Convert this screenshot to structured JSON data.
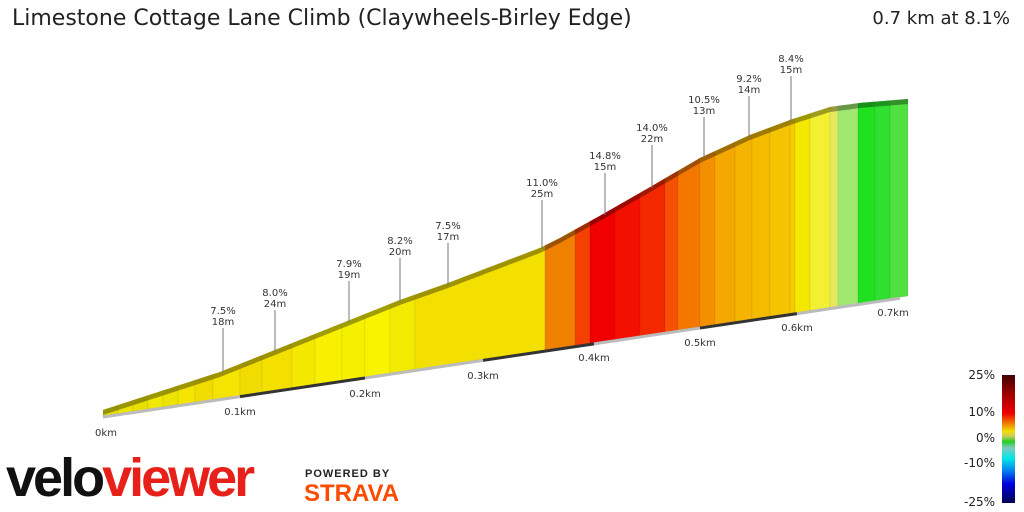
{
  "header": {
    "title": "Limestone Cottage Lane Climb (Claywheels-Birley Edge)",
    "summary": "0.7 km at 8.1%"
  },
  "chart_data": {
    "type": "area",
    "title": "Limestone Cottage Lane Climb (Claywheels-Birley Edge)",
    "x_ticks": [
      "0km",
      "0.1km",
      "0.2km",
      "0.3km",
      "0.4km",
      "0.5km",
      "0.6km",
      "0.7km"
    ],
    "xlim_km": [
      0,
      0.7
    ],
    "segment_labels": [
      {
        "grade": "7.5%",
        "length": "18m"
      },
      {
        "grade": "8.0%",
        "length": "24m"
      },
      {
        "grade": "7.9%",
        "length": "19m"
      },
      {
        "grade": "8.2%",
        "length": "20m"
      },
      {
        "grade": "7.5%",
        "length": "17m"
      },
      {
        "grade": "11.0%",
        "length": "25m"
      },
      {
        "grade": "14.8%",
        "length": "15m"
      },
      {
        "grade": "14.0%",
        "length": "22m"
      },
      {
        "grade": "10.5%",
        "length": "13m"
      },
      {
        "grade": "9.2%",
        "length": "14m"
      },
      {
        "grade": "8.4%",
        "length": "15m"
      }
    ],
    "slice_colors": [
      "#e8e000",
      "#ece400",
      "#e8e000",
      "#f0e800",
      "#ece400",
      "#f4e400",
      "#f0dc00",
      "#f4e400",
      "#f0dc00",
      "#f4e000",
      "#f4e800",
      "#f8f000",
      "#f4f000",
      "#f8f400",
      "#f2ea00",
      "#f4e000",
      "#f08000",
      "#f44000",
      "#f00000",
      "#f41000",
      "#f42800",
      "#f45000",
      "#f47800",
      "#f49000",
      "#f4a800",
      "#f4b400",
      "#f4bc00",
      "#f4c400",
      "#f4cc00",
      "#f4e800",
      "#f2f030",
      "#e4e860",
      "#a0e870",
      "#20e020",
      "#30e030",
      "#50e040"
    ],
    "legend": {
      "ticks": [
        "25%",
        "10%",
        "0%",
        "-10%",
        "-25%"
      ]
    }
  },
  "brand": {
    "logo1": "velo",
    "logo2": "viewer",
    "powered": "POWERED BY",
    "strava": "STRAVA"
  }
}
